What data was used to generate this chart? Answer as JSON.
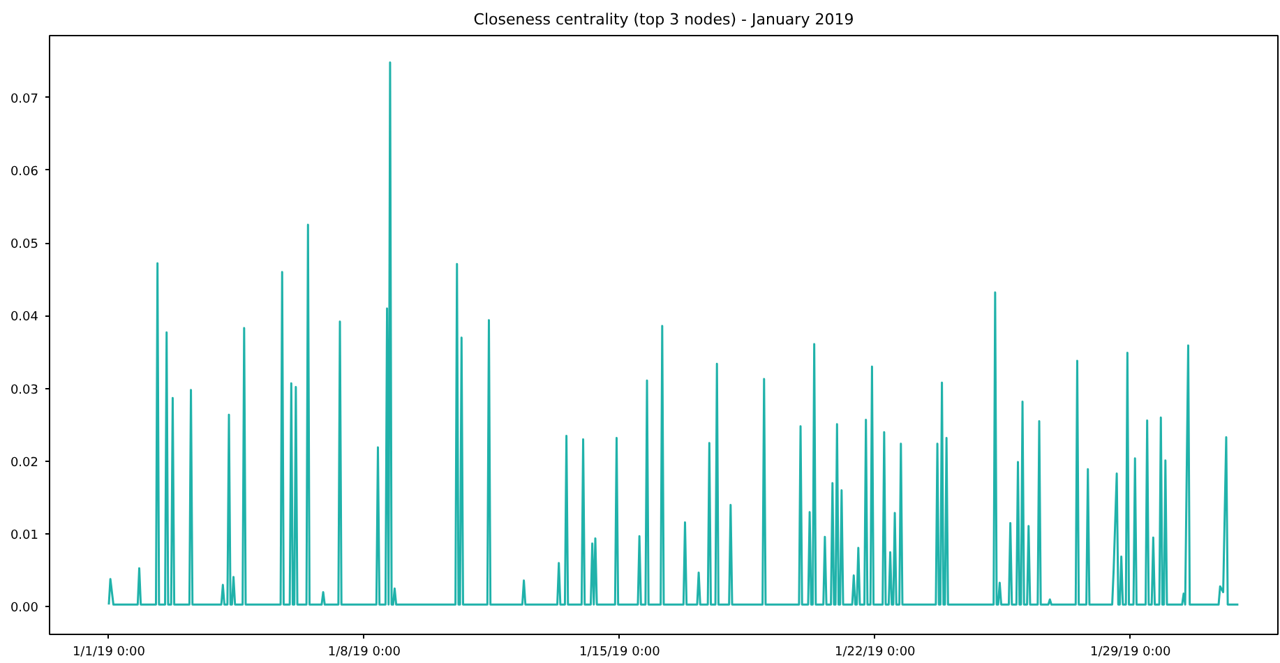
{
  "chart_data": {
    "type": "line",
    "title": "Closeness centrality (top 3 nodes) - January 2019",
    "xlim": [
      "2018-12-30T09:00",
      "2019-02-02T01:00"
    ],
    "xticks": [
      {
        "value": "2019-01-01",
        "label": "1/1/19 0:00"
      },
      {
        "value": "2019-01-08",
        "label": "1/8/19 0:00"
      },
      {
        "value": "2019-01-15",
        "label": "1/15/19 0:00"
      },
      {
        "value": "2019-01-22",
        "label": "1/22/19 0:00"
      },
      {
        "value": "2019-01-29",
        "label": "1/29/19 0:00"
      }
    ],
    "ylim": [
      -0.0038,
      0.0785
    ],
    "yticks": [
      {
        "value": 0,
        "label": "0.00"
      },
      {
        "value": 0.01,
        "label": "0.01"
      },
      {
        "value": 0.02,
        "label": "0.02"
      },
      {
        "value": 0.03,
        "label": "0.03"
      },
      {
        "value": 0.04,
        "label": "0.04"
      },
      {
        "value": 0.05,
        "label": "0.05"
      },
      {
        "value": 0.06,
        "label": "0.06"
      },
      {
        "value": 0.07,
        "label": "0.07"
      }
    ],
    "grid": false,
    "marker": "none",
    "line_style": "solid",
    "series": [
      {
        "color": "#20b2aa",
        "x": [
          "2019-01-01T00:00",
          "2019-01-01T01:00",
          "2019-01-01T03:00",
          "2019-01-01T19:00",
          "2019-01-01T20:00",
          "2019-01-01T21:00",
          "2019-01-02T07:00",
          "2019-01-02T08:00",
          "2019-01-02T09:00",
          "2019-01-02T13:00",
          "2019-01-02T14:00",
          "2019-01-02T15:00",
          "2019-01-02T17:00",
          "2019-01-02T18:00",
          "2019-01-02T19:00",
          "2019-01-03T05:00",
          "2019-01-03T06:00",
          "2019-01-03T07:00",
          "2019-01-04T02:00",
          "2019-01-04T03:00",
          "2019-01-04T04:00",
          "2019-01-04T06:00",
          "2019-01-04T07:00",
          "2019-01-04T08:00",
          "2019-01-04T09:00",
          "2019-01-04T10:00",
          "2019-01-04T11:00",
          "2019-01-04T16:00",
          "2019-01-04T17:00",
          "2019-01-04T18:00",
          "2019-01-05T17:00",
          "2019-01-05T18:00",
          "2019-01-05T19:00",
          "2019-01-05T23:00",
          "2019-01-06T00:00",
          "2019-01-06T01:00",
          "2019-01-06T02:00",
          "2019-01-06T03:00",
          "2019-01-06T04:00",
          "2019-01-06T10:00",
          "2019-01-06T11:00",
          "2019-01-06T12:00",
          "2019-01-06T20:00",
          "2019-01-06T21:00",
          "2019-01-06T22:00",
          "2019-01-07T07:00",
          "2019-01-07T08:00",
          "2019-01-07T09:00",
          "2019-01-08T08:00",
          "2019-01-08T09:00",
          "2019-01-08T10:00",
          "2019-01-08T14:00",
          "2019-01-08T15:00",
          "2019-01-08T16:00",
          "2019-01-08T17:00",
          "2019-01-08T18:00",
          "2019-01-08T19:00",
          "2019-01-08T20:00",
          "2019-01-08T21:00",
          "2019-01-10T12:00",
          "2019-01-10T13:00",
          "2019-01-10T14:00",
          "2019-01-10T15:00",
          "2019-01-10T16:00",
          "2019-01-10T17:00",
          "2019-01-11T09:00",
          "2019-01-11T10:00",
          "2019-01-11T11:00",
          "2019-01-12T08:00",
          "2019-01-12T09:00",
          "2019-01-12T10:00",
          "2019-01-13T07:00",
          "2019-01-13T08:00",
          "2019-01-13T09:00",
          "2019-01-13T12:00",
          "2019-01-13T13:00",
          "2019-01-13T14:00",
          "2019-01-13T23:00",
          "2019-01-14T00:00",
          "2019-01-14T01:00",
          "2019-01-14T05:00",
          "2019-01-14T06:00",
          "2019-01-14T07:00",
          "2019-01-14T08:00",
          "2019-01-14T09:00",
          "2019-01-14T21:00",
          "2019-01-14T22:00",
          "2019-01-14T23:00",
          "2019-01-15T12:00",
          "2019-01-15T13:00",
          "2019-01-15T14:00",
          "2019-01-15T17:00",
          "2019-01-15T18:00",
          "2019-01-15T19:00",
          "2019-01-16T03:00",
          "2019-01-16T04:00",
          "2019-01-16T05:00",
          "2019-01-16T18:00",
          "2019-01-16T19:00",
          "2019-01-16T20:00",
          "2019-01-17T03:00",
          "2019-01-17T04:00",
          "2019-01-17T05:00",
          "2019-01-17T10:00",
          "2019-01-17T11:00",
          "2019-01-17T12:00",
          "2019-01-17T15:00",
          "2019-01-17T16:00",
          "2019-01-17T17:00",
          "2019-01-18T00:00",
          "2019-01-18T01:00",
          "2019-01-18T02:00",
          "2019-01-18T22:00",
          "2019-01-18T23:00",
          "2019-01-19T00:00",
          "2019-01-19T22:00",
          "2019-01-19T23:00",
          "2019-01-20T00:00",
          "2019-01-20T04:00",
          "2019-01-20T05:00",
          "2019-01-20T06:00",
          "2019-01-20T07:00",
          "2019-01-20T08:00",
          "2019-01-20T09:00",
          "2019-01-20T14:00",
          "2019-01-20T15:00",
          "2019-01-20T16:00",
          "2019-01-20T19:00",
          "2019-01-20T20:00",
          "2019-01-20T21:00",
          "2019-01-20T22:00",
          "2019-01-20T23:00",
          "2019-01-21T00:00",
          "2019-01-21T01:00",
          "2019-01-21T02:00",
          "2019-01-21T03:00",
          "2019-01-21T09:00",
          "2019-01-21T10:00",
          "2019-01-21T11:00",
          "2019-01-21T12:00",
          "2019-01-21T13:00",
          "2019-01-21T14:00",
          "2019-01-21T17:00",
          "2019-01-21T18:00",
          "2019-01-21T19:00",
          "2019-01-21T21:00",
          "2019-01-21T22:00",
          "2019-01-21T23:00",
          "2019-01-22T05:00",
          "2019-01-22T06:00",
          "2019-01-22T07:00",
          "2019-01-22T09:00",
          "2019-01-22T10:00",
          "2019-01-22T11:00",
          "2019-01-22T12:00",
          "2019-01-22T13:00",
          "2019-01-22T14:00",
          "2019-01-22T16:00",
          "2019-01-22T17:00",
          "2019-01-22T18:00",
          "2019-01-23T16:00",
          "2019-01-23T17:00",
          "2019-01-23T18:00",
          "2019-01-23T19:00",
          "2019-01-23T20:00",
          "2019-01-23T21:00",
          "2019-01-23T22:00",
          "2019-01-23T23:00",
          "2019-01-24T00:00",
          "2019-01-25T06:00",
          "2019-01-25T07:00",
          "2019-01-25T08:00",
          "2019-01-25T09:00",
          "2019-01-25T10:00",
          "2019-01-25T11:00",
          "2019-01-25T16:00",
          "2019-01-25T17:00",
          "2019-01-25T18:00",
          "2019-01-25T21:00",
          "2019-01-25T22:00",
          "2019-01-25T23:00",
          "2019-01-26T00:00",
          "2019-01-26T01:00",
          "2019-01-26T02:00",
          "2019-01-26T04:00",
          "2019-01-26T05:00",
          "2019-01-26T06:00",
          "2019-01-26T11:00",
          "2019-01-26T12:00",
          "2019-01-26T13:00",
          "2019-01-26T18:00",
          "2019-01-26T19:00",
          "2019-01-26T20:00",
          "2019-01-27T12:00",
          "2019-01-27T13:00",
          "2019-01-27T14:00",
          "2019-01-27T19:00",
          "2019-01-27T20:00",
          "2019-01-27T21:00",
          "2019-01-28T12:00",
          "2019-01-28T13:00",
          "2019-01-28T15:00",
          "2019-01-28T16:00",
          "2019-01-28T17:00",
          "2019-01-28T18:00",
          "2019-01-28T19:00",
          "2019-01-28T21:00",
          "2019-01-28T22:00",
          "2019-01-28T23:00",
          "2019-01-29T02:00",
          "2019-01-29T03:00",
          "2019-01-29T04:00",
          "2019-01-29T10:00",
          "2019-01-29T11:00",
          "2019-01-29T12:00",
          "2019-01-29T14:00",
          "2019-01-29T15:00",
          "2019-01-29T16:00",
          "2019-01-29T19:00",
          "2019-01-29T20:00",
          "2019-01-29T21:00",
          "2019-01-29T22:00",
          "2019-01-29T23:00",
          "2019-01-30T00:00",
          "2019-01-30T10:00",
          "2019-01-30T11:00",
          "2019-01-30T12:00",
          "2019-01-30T14:00",
          "2019-01-30T15:00",
          "2019-01-31T10:00",
          "2019-01-31T11:00",
          "2019-01-31T13:00",
          "2019-01-31T15:00",
          "2019-01-31T16:00",
          "2019-01-31T23:00"
        ],
        "values": [
          0.0003,
          0.0038,
          0.0003,
          0.0003,
          0.0053,
          0.0003,
          0.0003,
          0.0472,
          0.0003,
          0.0003,
          0.0377,
          0.0003,
          0.0003,
          0.0287,
          0.0003,
          0.0003,
          0.0298,
          0.0003,
          0.0003,
          0.003,
          0.0003,
          0.0003,
          0.0264,
          0.0003,
          0.0003,
          0.0041,
          0.0003,
          0.0003,
          0.0383,
          0.0003,
          0.0003,
          0.046,
          0.0003,
          0.0003,
          0.0307,
          0.0003,
          0.0003,
          0.0302,
          0.0003,
          0.0003,
          0.0525,
          0.0003,
          0.0003,
          0.002,
          0.0003,
          0.0003,
          0.0392,
          0.0003,
          0.0003,
          0.0219,
          0.0003,
          0.0003,
          0.041,
          0.0003,
          0.0748,
          0.0003,
          0.0003,
          0.0025,
          0.0003,
          0.0003,
          0.0471,
          0.0003,
          0.0003,
          0.037,
          0.0003,
          0.0003,
          0.0394,
          0.0003,
          0.0003,
          0.0036,
          0.0003,
          0.0003,
          0.006,
          0.0003,
          0.0003,
          0.0235,
          0.0003,
          0.0003,
          0.023,
          0.0003,
          0.0003,
          0.0087,
          0.0003,
          0.0094,
          0.0003,
          0.0003,
          0.0232,
          0.0003,
          0.0003,
          0.0097,
          0.0003,
          0.0003,
          0.0311,
          0.0003,
          0.0003,
          0.0386,
          0.0003,
          0.0003,
          0.0116,
          0.0003,
          0.0003,
          0.0047,
          0.0003,
          0.0003,
          0.0225,
          0.0003,
          0.0003,
          0.0334,
          0.0003,
          0.0003,
          0.014,
          0.0003,
          0.0003,
          0.0313,
          0.0003,
          0.0003,
          0.0248,
          0.0003,
          0.0003,
          0.013,
          0.0003,
          0.0003,
          0.0361,
          0.0003,
          0.0003,
          0.0096,
          0.0003,
          0.0003,
          0.017,
          0.0003,
          0.0003,
          0.0251,
          0.0003,
          0.0003,
          0.016,
          0.0003,
          0.0003,
          0.0043,
          0.0003,
          0.0003,
          0.0081,
          0.0003,
          0.0003,
          0.0257,
          0.0003,
          0.0003,
          0.033,
          0.0003,
          0.0003,
          0.024,
          0.0003,
          0.0003,
          0.0075,
          0.0003,
          0.0003,
          0.0129,
          0.0003,
          0.0003,
          0.0224,
          0.0003,
          0.0003,
          0.0224,
          0.0003,
          0.0003,
          0.0308,
          0.0003,
          0.0003,
          0.0232,
          0.0003,
          0.0003,
          0.0432,
          0.0003,
          0.0003,
          0.0033,
          0.0003,
          0.0003,
          0.0115,
          0.0003,
          0.0003,
          0.0199,
          0.0003,
          0.0003,
          0.0282,
          0.0003,
          0.0003,
          0.0111,
          0.0003,
          0.0003,
          0.0255,
          0.0003,
          0.0003,
          0.001,
          0.0003,
          0.0003,
          0.0338,
          0.0003,
          0.0003,
          0.0189,
          0.0003,
          0.0003,
          0.0053,
          0.0183,
          0.0003,
          0.0003,
          0.0069,
          0.0003,
          0.0003,
          0.0349,
          0.0003,
          0.0003,
          0.0204,
          0.0003,
          0.0003,
          0.0256,
          0.0003,
          0.0003,
          0.0095,
          0.0003,
          0.0003,
          0.026,
          0.0003,
          0.0003,
          0.0201,
          0.0003,
          0.0003,
          0.0018,
          0.0003,
          0.0359,
          0.0003,
          0.0003,
          0.0028,
          0.002,
          0.0233,
          0.0003,
          0.0003
        ]
      }
    ]
  }
}
